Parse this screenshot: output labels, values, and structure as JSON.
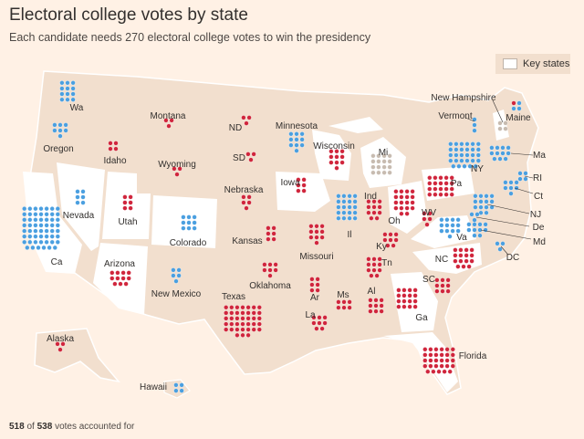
{
  "title": "Electoral college votes by state",
  "subtitle": "Each candidate needs 270 electoral college votes to win the presidency",
  "legend": {
    "label": "Key states"
  },
  "footer": {
    "counted": "518",
    "total": "538",
    "suffix": "votes accounted for"
  },
  "colors": {
    "background": "#fff1e5",
    "land": "#f2dfce",
    "key_state": "#ffffff",
    "border": "#ffffff",
    "blue": "#4a9fe0",
    "red": "#d0253c",
    "undecided": "#c7bbb0"
  },
  "states": [
    {
      "label": "Wa",
      "votes": 12,
      "party": "blue"
    },
    {
      "label": "Oregon",
      "votes": 7,
      "party": "blue"
    },
    {
      "label": "Ca",
      "votes": 55,
      "party": "blue",
      "key": true
    },
    {
      "label": "Nevada",
      "votes": 6,
      "party": "blue",
      "key": true
    },
    {
      "label": "Idaho",
      "votes": 4,
      "party": "red"
    },
    {
      "label": "Montana",
      "votes": 3,
      "party": "red"
    },
    {
      "label": "Wyoming",
      "votes": 3,
      "party": "red"
    },
    {
      "label": "Utah",
      "votes": 6,
      "party": "red",
      "key": true
    },
    {
      "label": "Arizona",
      "votes": 11,
      "party": "red",
      "key": true
    },
    {
      "label": "Colorado",
      "votes": 9,
      "party": "blue",
      "key": true
    },
    {
      "label": "New Mexico",
      "votes": 5,
      "party": "blue"
    },
    {
      "label": "ND",
      "votes": 3,
      "party": "red"
    },
    {
      "label": "SD",
      "votes": 3,
      "party": "red"
    },
    {
      "label": "Nebraska",
      "votes": 5,
      "party": "red"
    },
    {
      "label": "Kansas",
      "votes": 6,
      "party": "red"
    },
    {
      "label": "Oklahoma",
      "votes": 7,
      "party": "red"
    },
    {
      "label": "Texas",
      "votes": 38,
      "party": "red"
    },
    {
      "label": "Minnesota",
      "votes": 10,
      "party": "blue"
    },
    {
      "label": "Iowa",
      "votes": 6,
      "party": "red",
      "key": true
    },
    {
      "label": "Missouri",
      "votes": 10,
      "party": "red"
    },
    {
      "label": "Ar",
      "votes": 6,
      "party": "red"
    },
    {
      "label": "La",
      "votes": 8,
      "party": "red"
    },
    {
      "label": "Wisconsin",
      "votes": 10,
      "party": "red",
      "key": true
    },
    {
      "label": "Il",
      "votes": 20,
      "party": "blue"
    },
    {
      "label": "Mi",
      "votes": 16,
      "party": "undecided",
      "key": true
    },
    {
      "label": "Ind",
      "votes": 11,
      "party": "red"
    },
    {
      "label": "Oh",
      "votes": 18,
      "party": "red",
      "key": true
    },
    {
      "label": "Ky",
      "votes": 8,
      "party": "red"
    },
    {
      "label": "Tn",
      "votes": 11,
      "party": "red"
    },
    {
      "label": "Ms",
      "votes": 6,
      "party": "red"
    },
    {
      "label": "Al",
      "votes": 9,
      "party": "red"
    },
    {
      "label": "Ga",
      "votes": 16,
      "party": "red",
      "key": true
    },
    {
      "label": "Florida",
      "votes": 29,
      "party": "red",
      "key": true
    },
    {
      "label": "SC",
      "votes": 9,
      "party": "red"
    },
    {
      "label": "NC",
      "votes": 15,
      "party": "red",
      "key": true
    },
    {
      "label": "Va",
      "votes": 13,
      "party": "blue",
      "key": true
    },
    {
      "label": "WV",
      "votes": 5,
      "party": "red"
    },
    {
      "label": "Pa",
      "votes": 20,
      "party": "red",
      "key": true
    },
    {
      "label": "NY",
      "votes": 29,
      "party": "blue"
    },
    {
      "label": "Vermont",
      "votes": 3,
      "party": "blue"
    },
    {
      "label": "New Hampshire",
      "votes": 4,
      "party": "undecided",
      "key": true
    },
    {
      "label": "Maine",
      "votes": 4,
      "party": "mixed"
    },
    {
      "label": "Ma",
      "votes": 11,
      "party": "blue"
    },
    {
      "label": "RI",
      "votes": 4,
      "party": "blue"
    },
    {
      "label": "Ct",
      "votes": 7,
      "party": "blue"
    },
    {
      "label": "NJ",
      "votes": 14,
      "party": "blue"
    },
    {
      "label": "De",
      "votes": 3,
      "party": "blue"
    },
    {
      "label": "Md",
      "votes": 10,
      "party": "blue"
    },
    {
      "label": "DC",
      "votes": 3,
      "party": "blue"
    },
    {
      "label": "Alaska",
      "votes": 3,
      "party": "red"
    },
    {
      "label": "Hawaii",
      "votes": 4,
      "party": "blue"
    }
  ]
}
